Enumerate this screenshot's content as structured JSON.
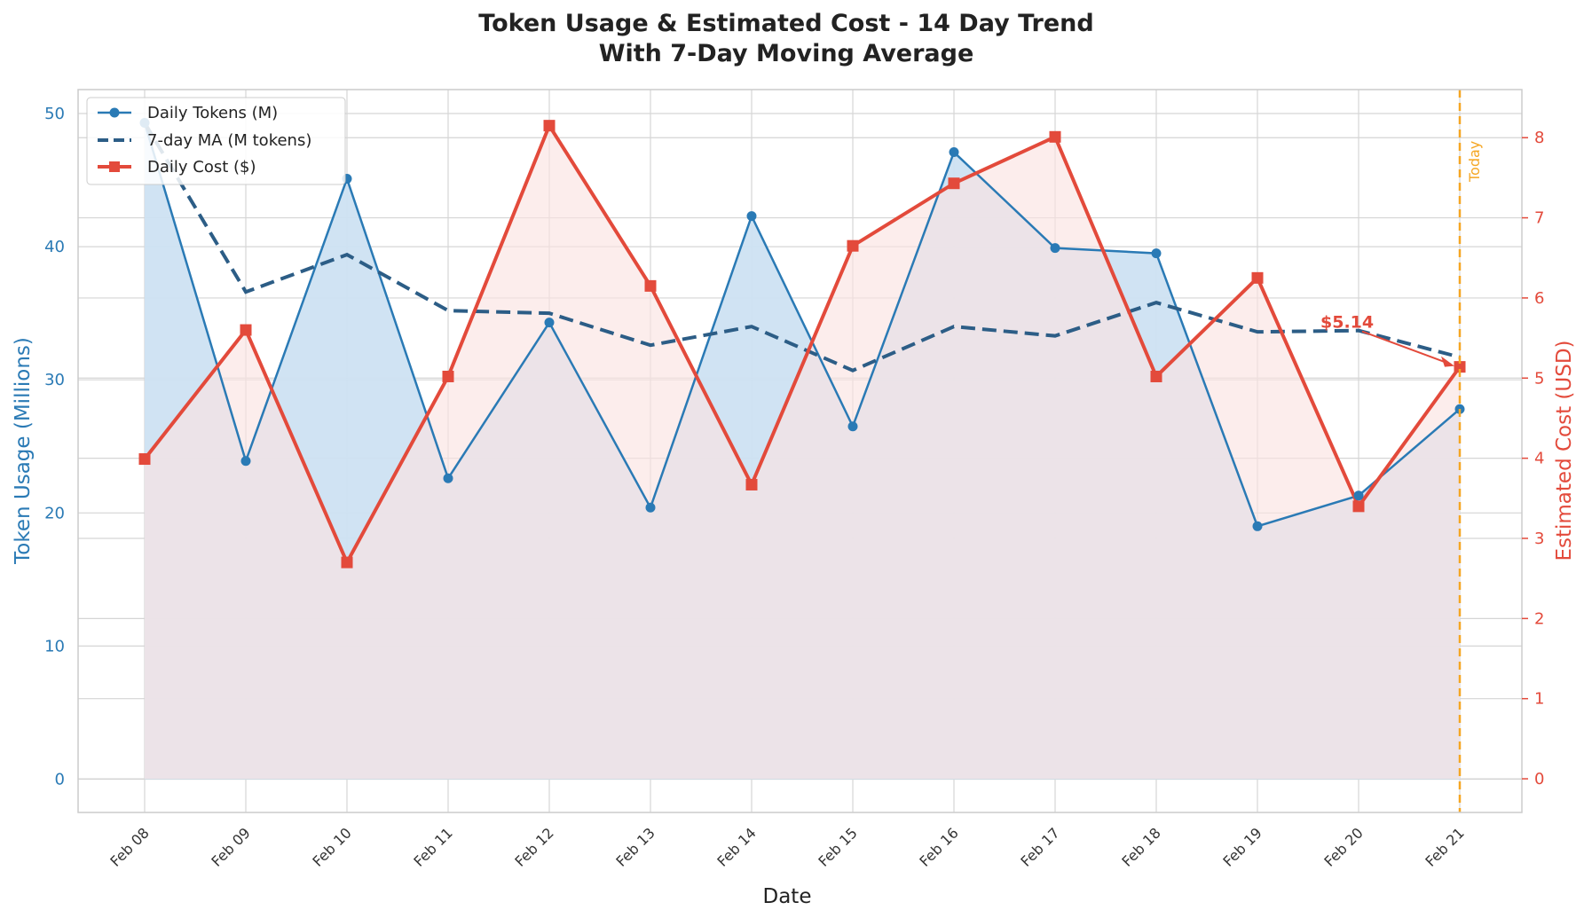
{
  "chart_data": {
    "type": "line",
    "title": "Token Usage & Estimated Cost - 14 Day Trend",
    "subtitle": "With 7-Day Moving Average",
    "xlabel": "Date",
    "ylabel_left": "Token Usage (Millions)",
    "ylabel_right": "Estimated Cost (USD)",
    "categories": [
      "Feb 08",
      "Feb 09",
      "Feb 10",
      "Feb 11",
      "Feb 12",
      "Feb 13",
      "Feb 14",
      "Feb 15",
      "Feb 16",
      "Feb 17",
      "Feb 18",
      "Feb 19",
      "Feb 20",
      "Feb 21"
    ],
    "ylim_left": [
      -2.5,
      51.8
    ],
    "ylim_right": [
      -0.42,
      8.6
    ],
    "yticks_left": [
      0,
      10,
      20,
      30,
      40,
      50
    ],
    "yticks_right": [
      0,
      1,
      2,
      3,
      4,
      5,
      6,
      7,
      8
    ],
    "grid": true,
    "legend_position": "top-left",
    "series": [
      {
        "name": "Daily Tokens (M)",
        "axis": "left",
        "style": "line-circle",
        "color": "#2a7ab5",
        "fill": "#cde2f2",
        "values": [
          49.3,
          23.9,
          45.1,
          22.6,
          34.3,
          20.4,
          42.3,
          26.5,
          47.1,
          39.9,
          39.5,
          19.0,
          21.3,
          27.8
        ]
      },
      {
        "name": "7-day MA (M tokens)",
        "axis": "left",
        "style": "dashed",
        "color": "#2c5d86",
        "values": [
          49.3,
          36.6,
          39.4,
          35.2,
          35.0,
          32.6,
          34.0,
          30.7,
          34.0,
          33.3,
          35.8,
          33.6,
          33.7,
          31.7
        ]
      },
      {
        "name": "Daily Cost ($)",
        "axis": "right",
        "style": "line-square",
        "color": "#e34a3b",
        "fill": "#fbe3e2",
        "values": [
          3.99,
          5.6,
          2.7,
          5.02,
          8.15,
          6.15,
          3.67,
          6.65,
          7.43,
          8.01,
          5.02,
          6.25,
          3.4,
          5.14
        ]
      }
    ],
    "annotations": [
      {
        "text": "$5.14",
        "color": "#e34a3b"
      },
      {
        "text": "Today",
        "color": "#f5a623"
      }
    ]
  }
}
